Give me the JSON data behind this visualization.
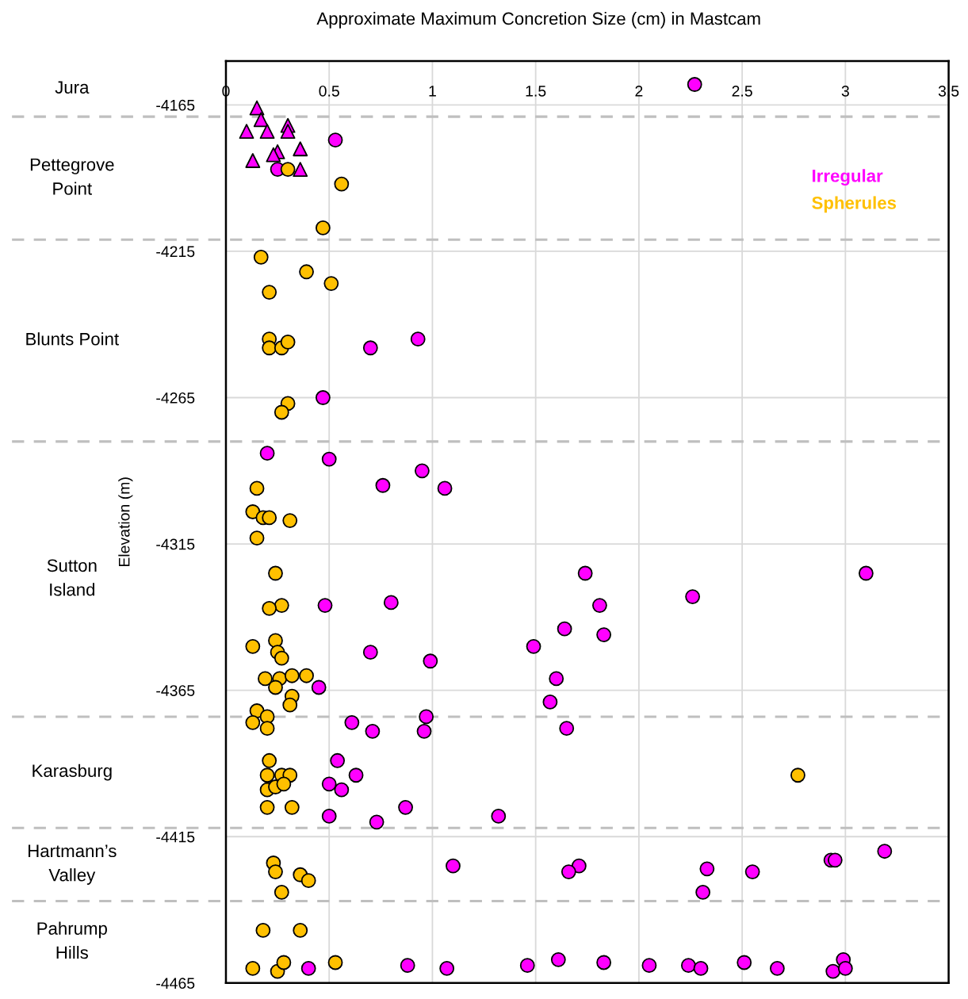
{
  "chart_data": {
    "type": "scatter",
    "title": "Approximate Maximum Concretion Size (cm) in Mastcam",
    "ylabel": "Elevation (m)",
    "xlim": [
      0,
      3.5
    ],
    "xticks": [
      0,
      0.5,
      1,
      1.5,
      2,
      2.5,
      3,
      3.5
    ],
    "ylim": [
      -4465,
      -4150
    ],
    "yticks": [
      -4165,
      -4215,
      -4265,
      -4315,
      -4365,
      -4415,
      -4465
    ],
    "grid": true,
    "legend": "top right",
    "marker": "circle",
    "ref_lines": [
      {
        "axis": "y",
        "value": -4169,
        "color": "#bfbfbf",
        "line_style": "dashed"
      },
      {
        "axis": "y",
        "value": -4211,
        "color": "#bfbfbf",
        "line_style": "dashed"
      },
      {
        "axis": "y",
        "value": -4280,
        "color": "#bfbfbf",
        "line_style": "dashed"
      },
      {
        "axis": "y",
        "value": -4374,
        "color": "#bfbfbf",
        "line_style": "dashed"
      },
      {
        "axis": "y",
        "value": -4412,
        "color": "#bfbfbf",
        "line_style": "dashed"
      },
      {
        "axis": "y",
        "value": -4437,
        "color": "#bfbfbf",
        "line_style": "dashed"
      }
    ],
    "annotations": [
      "Jura",
      "Pettegrove Point",
      "Blunts Point",
      "Sutton Island",
      "Karasburg",
      "Hartmann’s Valley",
      "Pahrump Hills"
    ],
    "series": [
      {
        "name": "Irregular",
        "color": "#ff00ff",
        "x": [
          2.27,
          0.53,
          0.25,
          0.93,
          0.7,
          0.47,
          0.2,
          0.5,
          0.95,
          0.76,
          1.06,
          1.74,
          3.1,
          2.26,
          0.8,
          0.48,
          1.81,
          1.64,
          1.83,
          1.49,
          0.7,
          0.99,
          1.6,
          0.45,
          1.57,
          0.97,
          0.61,
          1.65,
          0.71,
          0.96,
          0.54,
          0.63,
          0.5,
          0.56,
          0.87,
          1.32,
          0.5,
          0.73,
          3.19,
          2.93,
          2.95,
          1.1,
          1.71,
          1.66,
          2.33,
          2.55,
          2.31,
          0.4,
          0.88,
          1.07,
          1.46,
          1.61,
          1.83,
          2.05,
          2.24,
          2.3,
          2.51,
          2.67,
          2.94,
          2.99,
          3.0
        ],
        "values": [
          -4158,
          -4177,
          -4187,
          -4245,
          -4248,
          -4265,
          -4284,
          -4286,
          -4290,
          -4295,
          -4296,
          -4325,
          -4325,
          -4333,
          -4335,
          -4336,
          -4336,
          -4344,
          -4346,
          -4350,
          -4352,
          -4355,
          -4361,
          -4364,
          -4369,
          -4374,
          -4376,
          -4378,
          -4379,
          -4379,
          -4389,
          -4394,
          -4397,
          -4399,
          -4405,
          -4408,
          -4408,
          -4410,
          -4420,
          -4423,
          -4423,
          -4425,
          -4425,
          -4427,
          -4426,
          -4427,
          -4434,
          -4460,
          -4459,
          -4460,
          -4459,
          -4457,
          -4458,
          -4459,
          -4459,
          -4460,
          -4458,
          -4460,
          -4461,
          -4457,
          -4460
        ]
      },
      {
        "color": "#ff00ff",
        "marker": "triangle",
        "x": [
          0.15,
          0.17,
          0.1,
          0.2,
          0.3,
          0.3,
          0.25,
          0.23,
          0.36,
          0.13,
          0.36
        ],
        "values": [
          -4166,
          -4170,
          -4174,
          -4174,
          -4172,
          -4174,
          -4181,
          -4182,
          -4180,
          -4184,
          -4187
        ]
      },
      {
        "name": "Spherules",
        "color": "#ffc000",
        "x": [
          0.3,
          0.56,
          0.47,
          0.17,
          0.39,
          0.51,
          0.21,
          0.21,
          0.21,
          0.27,
          0.3,
          0.3,
          0.27,
          0.15,
          0.13,
          0.18,
          0.21,
          0.31,
          0.15,
          0.24,
          0.27,
          0.21,
          0.13,
          0.24,
          0.25,
          0.27,
          0.19,
          0.26,
          0.32,
          0.39,
          0.24,
          0.32,
          0.31,
          0.15,
          0.13,
          0.2,
          0.2,
          0.21,
          0.2,
          0.27,
          0.31,
          0.2,
          0.24,
          0.28,
          0.2,
          0.32,
          2.77,
          0.23,
          0.24,
          0.36,
          0.4,
          0.27,
          0.18,
          0.36,
          0.13,
          0.25,
          0.28,
          0.53
        ],
        "values": [
          -4187,
          -4192,
          -4207,
          -4217,
          -4222,
          -4226,
          -4229,
          -4245,
          -4248,
          -4248,
          -4246,
          -4267,
          -4270,
          -4296,
          -4304,
          -4306,
          -4306,
          -4307,
          -4313,
          -4325,
          -4336,
          -4337,
          -4350,
          -4348,
          -4352,
          -4354,
          -4361,
          -4361,
          -4360,
          -4360,
          -4364,
          -4367,
          -4370,
          -4372,
          -4376,
          -4374,
          -4378,
          -4389,
          -4394,
          -4394,
          -4394,
          -4399,
          -4398,
          -4397,
          -4405,
          -4405,
          -4394,
          -4424,
          -4427,
          -4428,
          -4430,
          -4434,
          -4447,
          -4447,
          -4460,
          -4461,
          -4458,
          -4458
        ]
      }
    ]
  }
}
